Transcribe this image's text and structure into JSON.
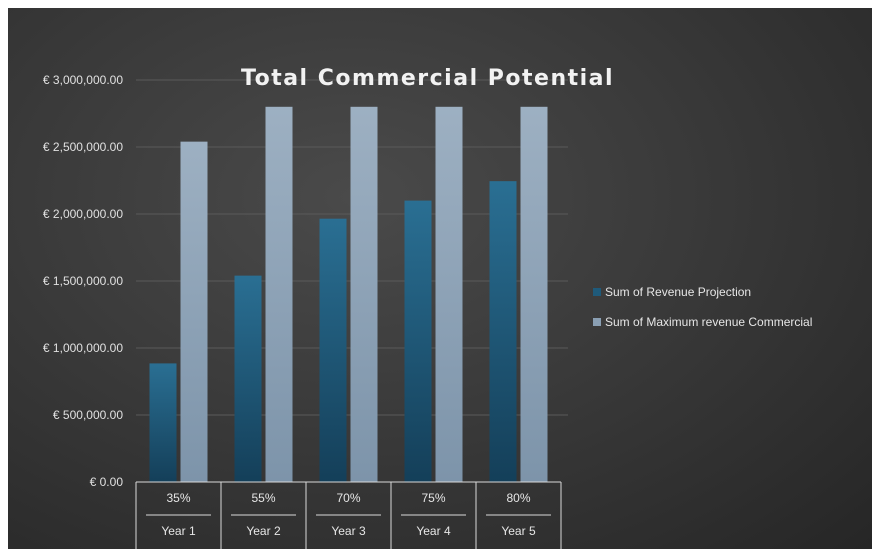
{
  "chart_data": {
    "type": "bar",
    "title": "Total Commercial Potential",
    "categories": [
      {
        "rate": "35%",
        "year": "Year 1"
      },
      {
        "rate": "55%",
        "year": "Year 2"
      },
      {
        "rate": "70%",
        "year": "Year 3"
      },
      {
        "rate": "75%",
        "year": "Year 4"
      },
      {
        "rate": "80%",
        "year": "Year 5"
      }
    ],
    "series": [
      {
        "name": "Sum of Revenue Projection",
        "color": "#1f5a7a",
        "values": [
          885000,
          1540000,
          1965000,
          2100000,
          2245000
        ]
      },
      {
        "name": "Sum of Maximum revenue Commercial",
        "color": "#8a9fb3",
        "values": [
          2540000,
          2800000,
          2800000,
          2800000,
          2800000
        ]
      }
    ],
    "ylim": [
      0,
      3000000
    ],
    "yticks": [
      0,
      500000,
      1000000,
      1500000,
      2000000,
      2500000,
      3000000
    ],
    "ytick_labels": [
      "€ 0.00",
      "€ 500,000.00",
      "€ 1,000,000.00",
      "€ 1,500,000.00",
      "€ 2,000,000.00",
      "€ 2,500,000.00",
      "€ 3,000,000.00"
    ],
    "grid": true,
    "legend_position": "right"
  }
}
